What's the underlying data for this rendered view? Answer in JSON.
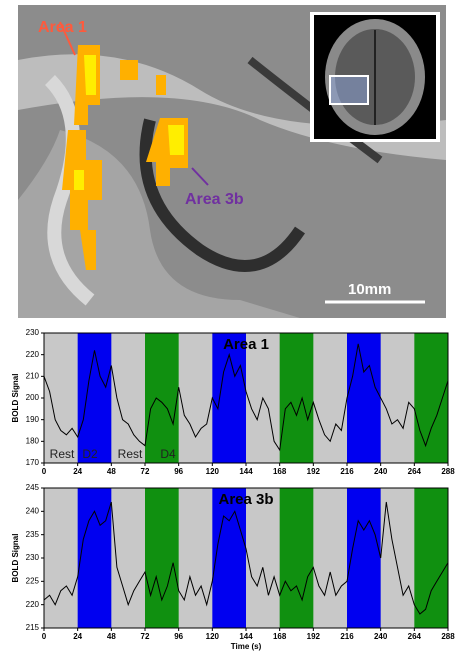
{
  "image_annotations": {
    "area1": "Area 1",
    "area3b": "Area 3b",
    "scale": "10mm"
  },
  "chart_data": [
    {
      "type": "line",
      "title": "Area 1",
      "y_label": "BOLD Signal",
      "background": "#c8c8c8",
      "annotations": [
        "Rest",
        "D2",
        "Rest",
        "D4"
      ],
      "bands": [
        {
          "start": 24,
          "end": 48,
          "color": "#0000f0"
        },
        {
          "start": 72,
          "end": 96,
          "color": "#109010"
        },
        {
          "start": 120,
          "end": 144,
          "color": "#0000f0"
        },
        {
          "start": 168,
          "end": 192,
          "color": "#109010"
        },
        {
          "start": 216,
          "end": 240,
          "color": "#0000f0"
        },
        {
          "start": 264,
          "end": 288,
          "color": "#109010"
        }
      ],
      "xlim": [
        0,
        288
      ],
      "xticks": [
        0,
        24,
        48,
        72,
        96,
        120,
        144,
        168,
        192,
        216,
        240,
        264,
        288
      ],
      "ylim": [
        170,
        230
      ],
      "yticks": [
        170,
        180,
        190,
        200,
        210,
        220,
        230
      ],
      "x": [
        0,
        4,
        8,
        12,
        16,
        20,
        24,
        28,
        32,
        36,
        40,
        44,
        48,
        52,
        56,
        60,
        64,
        68,
        72,
        76,
        80,
        84,
        88,
        92,
        96,
        100,
        104,
        108,
        112,
        116,
        120,
        124,
        128,
        132,
        136,
        140,
        144,
        148,
        152,
        156,
        160,
        164,
        168,
        172,
        176,
        180,
        184,
        188,
        192,
        196,
        200,
        204,
        208,
        212,
        216,
        220,
        224,
        228,
        232,
        236,
        240,
        244,
        248,
        252,
        256,
        260,
        264,
        268,
        272,
        276,
        280,
        284,
        288
      ],
      "series": [
        {
          "color": "#000000",
          "values": [
            210,
            203,
            190,
            185,
            183,
            186,
            182,
            190,
            208,
            222,
            210,
            205,
            215,
            200,
            190,
            188,
            183,
            180,
            178,
            195,
            200,
            198,
            195,
            188,
            205,
            192,
            188,
            182,
            186,
            188,
            200,
            195,
            212,
            220,
            210,
            215,
            203,
            195,
            190,
            200,
            195,
            180,
            176,
            195,
            198,
            192,
            200,
            190,
            198,
            190,
            183,
            180,
            188,
            185,
            200,
            210,
            225,
            212,
            215,
            205,
            200,
            195,
            188,
            190,
            186,
            198,
            195,
            185,
            178,
            186,
            192,
            200,
            208
          ]
        }
      ]
    },
    {
      "type": "line",
      "title": "Area 3b",
      "y_label": "BOLD Signal",
      "x_label": "Time (s)",
      "background": "#c8c8c8",
      "bands": [
        {
          "start": 24,
          "end": 48,
          "color": "#0000f0"
        },
        {
          "start": 72,
          "end": 96,
          "color": "#109010"
        },
        {
          "start": 120,
          "end": 144,
          "color": "#0000f0"
        },
        {
          "start": 168,
          "end": 192,
          "color": "#109010"
        },
        {
          "start": 216,
          "end": 240,
          "color": "#0000f0"
        },
        {
          "start": 264,
          "end": 288,
          "color": "#109010"
        }
      ],
      "xlim": [
        0,
        288
      ],
      "xticks": [
        0,
        24,
        48,
        72,
        96,
        120,
        144,
        168,
        192,
        216,
        240,
        264,
        288
      ],
      "ylim": [
        215,
        245
      ],
      "yticks": [
        215,
        220,
        225,
        230,
        235,
        240,
        245
      ],
      "x": [
        0,
        4,
        8,
        12,
        16,
        20,
        24,
        28,
        32,
        36,
        40,
        44,
        48,
        52,
        56,
        60,
        64,
        68,
        72,
        76,
        80,
        84,
        88,
        92,
        96,
        100,
        104,
        108,
        112,
        116,
        120,
        124,
        128,
        132,
        136,
        140,
        144,
        148,
        152,
        156,
        160,
        164,
        168,
        172,
        176,
        180,
        184,
        188,
        192,
        196,
        200,
        204,
        208,
        212,
        216,
        220,
        224,
        228,
        232,
        236,
        240,
        244,
        248,
        252,
        256,
        260,
        264,
        268,
        272,
        276,
        280,
        284,
        288
      ],
      "series": [
        {
          "color": "#000000",
          "values": [
            221,
            222,
            220,
            223,
            224,
            222,
            226,
            234,
            238,
            240,
            237,
            238,
            242,
            228,
            224,
            220,
            223,
            225,
            227,
            222,
            226,
            221,
            224,
            229,
            223,
            221,
            226,
            222,
            224,
            220,
            225,
            233,
            239,
            238,
            240,
            236,
            232,
            226,
            224,
            228,
            222,
            226,
            222,
            225,
            223,
            224,
            221,
            226,
            228,
            224,
            222,
            227,
            222,
            224,
            225,
            232,
            238,
            236,
            238,
            235,
            230,
            242,
            234,
            228,
            222,
            224,
            220,
            218,
            219,
            223,
            225,
            227,
            229
          ]
        }
      ]
    }
  ]
}
